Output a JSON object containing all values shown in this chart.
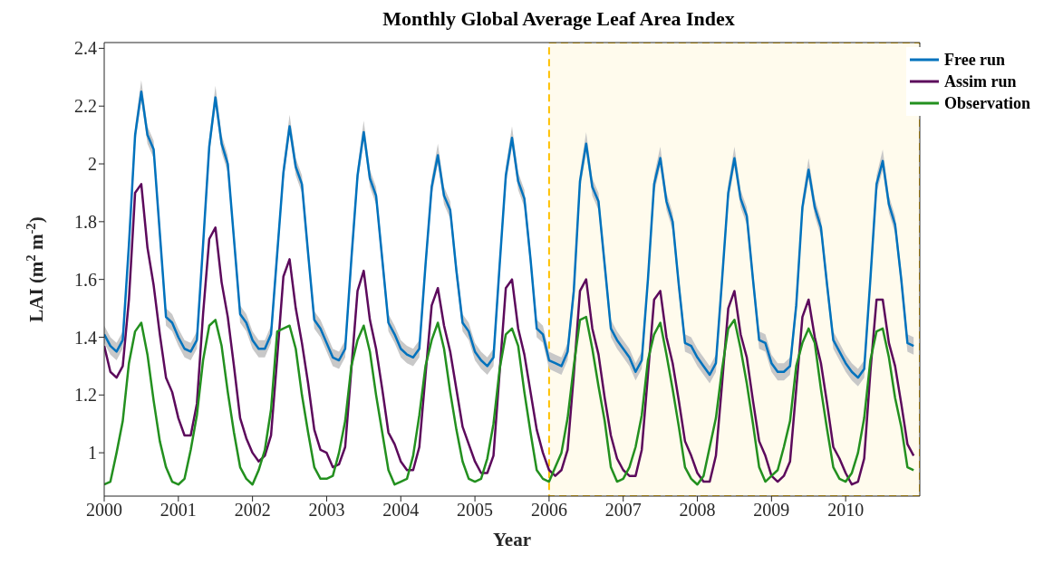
{
  "chart_data": {
    "type": "line",
    "title": "Monthly Global Average Leaf Area Index",
    "xlabel": "Year",
    "ylabel": "LAI (m$^{2}$ m$^{-2}$)",
    "x": [
      "2000-01",
      "2000-02",
      "2000-03",
      "2000-04",
      "2000-05",
      "2000-06",
      "2000-07",
      "2000-08",
      "2000-09",
      "2000-10",
      "2000-11",
      "2000-12",
      "2001-01",
      "2001-02",
      "2001-03",
      "2001-04",
      "2001-05",
      "2001-06",
      "2001-07",
      "2001-08",
      "2001-09",
      "2001-10",
      "2001-11",
      "2001-12",
      "2002-01",
      "2002-02",
      "2002-03",
      "2002-04",
      "2002-05",
      "2002-06",
      "2002-07",
      "2002-08",
      "2002-09",
      "2002-10",
      "2002-11",
      "2002-12",
      "2003-01",
      "2003-02",
      "2003-03",
      "2003-04",
      "2003-05",
      "2003-06",
      "2003-07",
      "2003-08",
      "2003-09",
      "2003-10",
      "2003-11",
      "2003-12",
      "2004-01",
      "2004-02",
      "2004-03",
      "2004-04",
      "2004-05",
      "2004-06",
      "2004-07",
      "2004-08",
      "2004-09",
      "2004-10",
      "2004-11",
      "2004-12",
      "2005-01",
      "2005-02",
      "2005-03",
      "2005-04",
      "2005-05",
      "2005-06",
      "2005-07",
      "2005-08",
      "2005-09",
      "2005-10",
      "2005-11",
      "2005-12",
      "2006-01",
      "2006-02",
      "2006-03",
      "2006-04",
      "2006-05",
      "2006-06",
      "2006-07",
      "2006-08",
      "2006-09",
      "2006-10",
      "2006-11",
      "2006-12",
      "2007-01",
      "2007-02",
      "2007-03",
      "2007-04",
      "2007-05",
      "2007-06",
      "2007-07",
      "2007-08",
      "2007-09",
      "2007-10",
      "2007-11",
      "2007-12",
      "2008-01",
      "2008-02",
      "2008-03",
      "2008-04",
      "2008-05",
      "2008-06",
      "2008-07",
      "2008-08",
      "2008-09",
      "2008-10",
      "2008-11",
      "2008-12",
      "2009-01",
      "2009-02",
      "2009-03",
      "2009-04",
      "2009-05",
      "2009-06",
      "2009-07",
      "2009-08",
      "2009-09",
      "2009-10",
      "2009-11",
      "2009-12",
      "2010-01",
      "2010-02",
      "2010-03",
      "2010-04",
      "2010-05",
      "2010-06",
      "2010-07",
      "2010-08",
      "2010-09",
      "2010-10",
      "2010-11",
      "2010-12"
    ],
    "series": [
      {
        "name": "Free run",
        "color": "#0072bd",
        "values": [
          1.41,
          1.37,
          1.35,
          1.39,
          1.72,
          2.1,
          2.25,
          2.1,
          2.05,
          1.76,
          1.47,
          1.45,
          1.4,
          1.36,
          1.35,
          1.39,
          1.72,
          2.06,
          2.23,
          2.07,
          2.0,
          1.74,
          1.48,
          1.45,
          1.39,
          1.36,
          1.36,
          1.41,
          1.69,
          1.97,
          2.13,
          1.99,
          1.93,
          1.69,
          1.46,
          1.43,
          1.38,
          1.33,
          1.32,
          1.36,
          1.67,
          1.96,
          2.11,
          1.95,
          1.89,
          1.67,
          1.45,
          1.41,
          1.36,
          1.34,
          1.33,
          1.36,
          1.65,
          1.92,
          2.03,
          1.89,
          1.84,
          1.63,
          1.45,
          1.42,
          1.35,
          1.32,
          1.3,
          1.33,
          1.65,
          1.96,
          2.09,
          1.94,
          1.88,
          1.67,
          1.43,
          1.41,
          1.32,
          1.31,
          1.3,
          1.35,
          1.56,
          1.94,
          2.07,
          1.92,
          1.87,
          1.65,
          1.43,
          1.39,
          1.36,
          1.33,
          1.28,
          1.32,
          1.6,
          1.93,
          2.02,
          1.87,
          1.8,
          1.58,
          1.38,
          1.37,
          1.33,
          1.3,
          1.27,
          1.31,
          1.6,
          1.9,
          2.02,
          1.88,
          1.82,
          1.6,
          1.39,
          1.38,
          1.31,
          1.28,
          1.28,
          1.3,
          1.51,
          1.85,
          1.98,
          1.85,
          1.78,
          1.58,
          1.39,
          1.35,
          1.31,
          1.28,
          1.26,
          1.29,
          1.6,
          1.93,
          2.01,
          1.86,
          1.79,
          1.6,
          1.38,
          1.37
        ],
        "lower": [
          1.38,
          1.34,
          1.32,
          1.36,
          1.69,
          2.07,
          2.22,
          2.07,
          2.02,
          1.73,
          1.44,
          1.42,
          1.37,
          1.33,
          1.32,
          1.36,
          1.69,
          2.03,
          2.2,
          2.04,
          1.97,
          1.71,
          1.45,
          1.42,
          1.36,
          1.33,
          1.33,
          1.38,
          1.66,
          1.94,
          2.1,
          1.96,
          1.9,
          1.66,
          1.43,
          1.4,
          1.35,
          1.3,
          1.29,
          1.33,
          1.64,
          1.93,
          2.08,
          1.92,
          1.86,
          1.64,
          1.42,
          1.38,
          1.33,
          1.31,
          1.3,
          1.33,
          1.62,
          1.89,
          2.0,
          1.86,
          1.81,
          1.6,
          1.42,
          1.39,
          1.32,
          1.29,
          1.27,
          1.3,
          1.62,
          1.93,
          2.06,
          1.91,
          1.85,
          1.64,
          1.4,
          1.38,
          1.29,
          1.28,
          1.27,
          1.32,
          1.53,
          1.91,
          2.04,
          1.89,
          1.84,
          1.62,
          1.4,
          1.36,
          1.33,
          1.3,
          1.25,
          1.29,
          1.57,
          1.9,
          1.99,
          1.84,
          1.77,
          1.55,
          1.35,
          1.34,
          1.3,
          1.27,
          1.24,
          1.28,
          1.57,
          1.87,
          1.99,
          1.85,
          1.79,
          1.57,
          1.36,
          1.35,
          1.28,
          1.25,
          1.25,
          1.27,
          1.48,
          1.82,
          1.95,
          1.82,
          1.75,
          1.55,
          1.36,
          1.32,
          1.28,
          1.25,
          1.23,
          1.26,
          1.57,
          1.9,
          1.98,
          1.83,
          1.76,
          1.57,
          1.35,
          1.34
        ],
        "upper": [
          1.44,
          1.4,
          1.38,
          1.42,
          1.75,
          2.13,
          2.29,
          2.13,
          2.08,
          1.79,
          1.5,
          1.48,
          1.43,
          1.39,
          1.38,
          1.42,
          1.75,
          2.09,
          2.27,
          2.1,
          2.03,
          1.77,
          1.51,
          1.48,
          1.42,
          1.39,
          1.39,
          1.44,
          1.72,
          2.0,
          2.17,
          2.02,
          1.96,
          1.72,
          1.49,
          1.46,
          1.41,
          1.36,
          1.35,
          1.39,
          1.7,
          1.99,
          2.15,
          1.98,
          1.92,
          1.7,
          1.48,
          1.44,
          1.39,
          1.37,
          1.36,
          1.39,
          1.68,
          1.95,
          2.07,
          1.92,
          1.87,
          1.66,
          1.48,
          1.45,
          1.38,
          1.35,
          1.33,
          1.36,
          1.68,
          1.99,
          2.13,
          1.97,
          1.91,
          1.7,
          1.46,
          1.44,
          1.35,
          1.34,
          1.33,
          1.38,
          1.59,
          1.97,
          2.11,
          1.95,
          1.9,
          1.68,
          1.46,
          1.42,
          1.39,
          1.36,
          1.31,
          1.35,
          1.63,
          1.96,
          2.06,
          1.9,
          1.83,
          1.61,
          1.41,
          1.4,
          1.36,
          1.33,
          1.3,
          1.34,
          1.63,
          1.93,
          2.06,
          1.91,
          1.85,
          1.63,
          1.42,
          1.41,
          1.34,
          1.31,
          1.31,
          1.33,
          1.54,
          1.88,
          2.02,
          1.88,
          1.81,
          1.61,
          1.42,
          1.38,
          1.34,
          1.31,
          1.29,
          1.32,
          1.63,
          1.96,
          2.05,
          1.89,
          1.82,
          1.63,
          1.41,
          1.4
        ]
      },
      {
        "name": "Assim run",
        "color": "#5c0a5c",
        "values": [
          1.37,
          1.28,
          1.26,
          1.3,
          1.53,
          1.9,
          1.93,
          1.71,
          1.58,
          1.41,
          1.26,
          1.21,
          1.12,
          1.06,
          1.06,
          1.17,
          1.48,
          1.74,
          1.78,
          1.59,
          1.47,
          1.3,
          1.12,
          1.05,
          1.0,
          0.97,
          0.99,
          1.06,
          1.33,
          1.61,
          1.67,
          1.5,
          1.38,
          1.24,
          1.08,
          1.01,
          1.0,
          0.95,
          0.96,
          1.02,
          1.29,
          1.56,
          1.63,
          1.46,
          1.36,
          1.22,
          1.07,
          1.03,
          0.97,
          0.94,
          0.94,
          1.02,
          1.27,
          1.51,
          1.57,
          1.44,
          1.35,
          1.22,
          1.09,
          1.03,
          0.97,
          0.93,
          0.93,
          0.99,
          1.28,
          1.57,
          1.6,
          1.43,
          1.34,
          1.21,
          1.08,
          1.0,
          0.94,
          0.92,
          0.94,
          1.01,
          1.27,
          1.56,
          1.6,
          1.43,
          1.34,
          1.19,
          1.06,
          0.98,
          0.94,
          0.92,
          0.92,
          1.01,
          1.27,
          1.53,
          1.56,
          1.4,
          1.31,
          1.18,
          1.04,
          0.99,
          0.93,
          0.9,
          0.9,
          0.99,
          1.24,
          1.5,
          1.56,
          1.41,
          1.33,
          1.18,
          1.04,
          0.99,
          0.92,
          0.9,
          0.92,
          0.97,
          1.22,
          1.47,
          1.53,
          1.4,
          1.31,
          1.17,
          1.02,
          0.98,
          0.93,
          0.89,
          0.9,
          0.98,
          1.28,
          1.53,
          1.53,
          1.38,
          1.3,
          1.17,
          1.03,
          0.99
        ]
      },
      {
        "name": "Observation",
        "color": "#23901f",
        "values": [
          0.89,
          0.9,
          1.0,
          1.11,
          1.31,
          1.42,
          1.45,
          1.34,
          1.18,
          1.04,
          0.95,
          0.9,
          0.89,
          0.91,
          1.01,
          1.13,
          1.32,
          1.44,
          1.46,
          1.37,
          1.21,
          1.07,
          0.95,
          0.91,
          0.89,
          0.94,
          1.01,
          1.15,
          1.42,
          1.43,
          1.44,
          1.36,
          1.2,
          1.07,
          0.95,
          0.91,
          0.91,
          0.92,
          1.0,
          1.11,
          1.3,
          1.39,
          1.44,
          1.35,
          1.2,
          1.07,
          0.94,
          0.89,
          0.9,
          0.91,
          0.99,
          1.13,
          1.3,
          1.39,
          1.45,
          1.36,
          1.21,
          1.08,
          0.97,
          0.91,
          0.9,
          0.91,
          0.98,
          1.1,
          1.29,
          1.41,
          1.43,
          1.37,
          1.21,
          1.07,
          0.94,
          0.91,
          0.9,
          0.95,
          1.0,
          1.12,
          1.3,
          1.46,
          1.47,
          1.36,
          1.23,
          1.11,
          0.95,
          0.9,
          0.91,
          0.95,
          1.02,
          1.13,
          1.32,
          1.41,
          1.45,
          1.34,
          1.22,
          1.09,
          0.95,
          0.91,
          0.89,
          0.92,
          1.02,
          1.12,
          1.29,
          1.43,
          1.46,
          1.36,
          1.24,
          1.1,
          0.95,
          0.9,
          0.92,
          0.94,
          1.02,
          1.11,
          1.3,
          1.38,
          1.43,
          1.38,
          1.22,
          1.08,
          0.95,
          0.91,
          0.9,
          0.93,
          1.0,
          1.12,
          1.32,
          1.42,
          1.43,
          1.33,
          1.19,
          1.09,
          0.95,
          0.94
        ]
      }
    ],
    "xlim": [
      "2000",
      "2011"
    ],
    "xticks": [
      "2000",
      "2001",
      "2002",
      "2003",
      "2004",
      "2005",
      "2006",
      "2007",
      "2008",
      "2009",
      "2010"
    ],
    "ylim": [
      0.85,
      2.42
    ],
    "yticks": [
      1,
      1.2,
      1.4,
      1.6,
      1.8,
      2,
      2.2,
      2.4
    ],
    "bands": [
      {
        "axis": "x",
        "from": "2006",
        "to": "2011",
        "color": "#ffc000"
      }
    ],
    "grid": false,
    "legend": "top right",
    "marker": "none",
    "line_style": "solid"
  }
}
